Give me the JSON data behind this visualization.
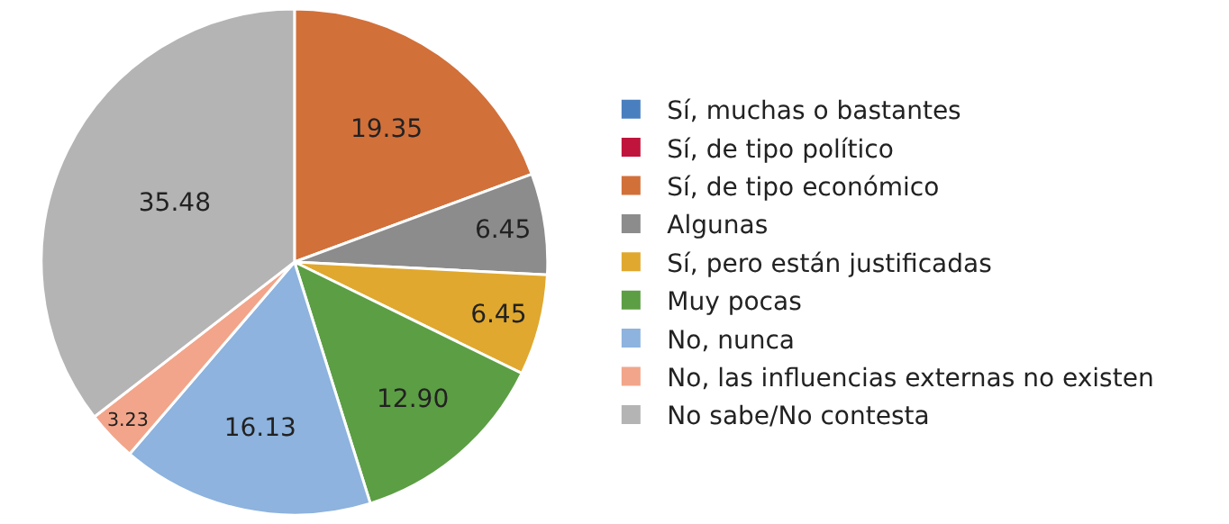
{
  "chart_data": {
    "type": "pie",
    "categories": [
      "Sí, muchas o bastantes",
      "Sí, de tipo político",
      "Sí, de tipo económico",
      "Algunas",
      "Sí, pero están justificadas",
      "Muy pocas",
      "No, nunca",
      "No, las influencias externas no existen",
      "No sabe/No contesta"
    ],
    "values": [
      0,
      0,
      19.35,
      6.45,
      6.45,
      12.9,
      16.13,
      3.23,
      35.48
    ],
    "value_labels": [
      null,
      null,
      "19.35",
      "6.45",
      "6.45",
      "12.90",
      "16.13",
      "3.23",
      "35.48"
    ],
    "colors": [
      "#4a7fbf",
      "#c0143c",
      "#d2703a",
      "#8c8c8c",
      "#e0a82e",
      "#5c9e44",
      "#8db3de",
      "#f2a58a",
      "#b4b4b4"
    ],
    "legend": "right"
  }
}
